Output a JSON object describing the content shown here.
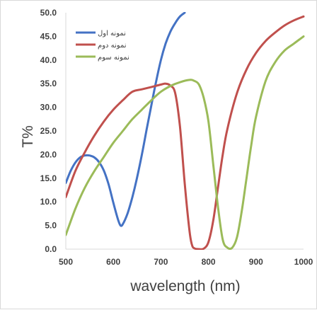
{
  "chart_data": {
    "type": "line",
    "title": "",
    "xlabel": "wavelength (nm)",
    "ylabel": "T%",
    "xlim": [
      500,
      1000
    ],
    "ylim": [
      0,
      50
    ],
    "x_ticks": [
      "500",
      "600",
      "700",
      "800",
      "900",
      "1000"
    ],
    "y_ticks": [
      "0.0",
      "5.0",
      "10.0",
      "15.0",
      "20.0",
      "25.0",
      "30.0",
      "35.0",
      "40.0",
      "45.0",
      "50.0"
    ],
    "grid": false,
    "legend_position": "top-left",
    "series": [
      {
        "name": "نمونه اول",
        "color": "#4472c4",
        "x": [
          500,
          510,
          520,
          530,
          540,
          550,
          560,
          570,
          580,
          590,
          600,
          610,
          615,
          620,
          630,
          640,
          650,
          660,
          670,
          680,
          690,
          700,
          710,
          720,
          730,
          740,
          750
        ],
        "y": [
          14,
          16.5,
          18.3,
          19.4,
          19.8,
          19.8,
          19.4,
          18.4,
          16.6,
          13.7,
          9.8,
          6.2,
          5.0,
          5.3,
          7.6,
          11,
          15.2,
          20,
          25.3,
          30.5,
          35.5,
          40,
          43.5,
          46,
          47.8,
          49.2,
          50
        ]
      },
      {
        "name": "نمونه دوم",
        "color": "#c0504d",
        "x": [
          500,
          520,
          540,
          560,
          580,
          600,
          620,
          640,
          660,
          680,
          700,
          710,
          720,
          730,
          740,
          750,
          760,
          765,
          770,
          780,
          790,
          800,
          810,
          820,
          830,
          840,
          860,
          880,
          900,
          920,
          940,
          960,
          980,
          1000
        ],
        "y": [
          11,
          16.5,
          20.5,
          24,
          27,
          29.5,
          31.5,
          33.3,
          33.8,
          34.3,
          34.8,
          35,
          34.6,
          33,
          26,
          14,
          4,
          1,
          0.2,
          0,
          0.1,
          1.5,
          6,
          13,
          20,
          25.5,
          33,
          38,
          41.5,
          44,
          45.8,
          47.3,
          48.4,
          49.2
        ]
      },
      {
        "name": "نمونه سوم",
        "color": "#9bbb59",
        "x": [
          500,
          520,
          540,
          560,
          580,
          600,
          620,
          640,
          660,
          680,
          700,
          720,
          740,
          760,
          770,
          780,
          790,
          800,
          810,
          820,
          830,
          840,
          850,
          860,
          870,
          880,
          890,
          900,
          920,
          940,
          960,
          980,
          1000
        ],
        "y": [
          3,
          8.5,
          13,
          16.5,
          19.5,
          22.5,
          25,
          27.5,
          29.5,
          31.5,
          33.3,
          34.5,
          35.3,
          35.8,
          35.6,
          34.8,
          32,
          27,
          18,
          9,
          2,
          0.3,
          0.3,
          2.5,
          8,
          15,
          22,
          28,
          35.5,
          39.5,
          42,
          43.5,
          45
        ]
      }
    ]
  }
}
